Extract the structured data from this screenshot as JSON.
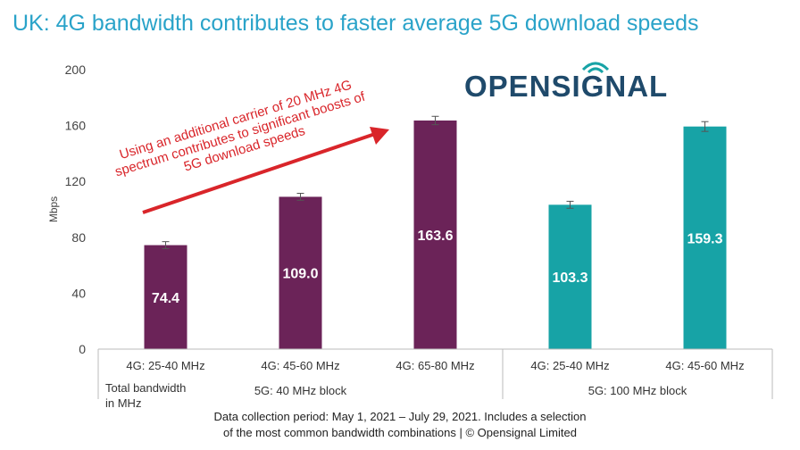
{
  "title": "UK: 4G bandwidth contributes to faster average 5G download speeds",
  "logo_text": "OPENSIGNAL",
  "annotation": "Using an additional carrier of 20 MHz 4G spectrum contributes to significant boosts of 5G download speeds",
  "footnote_line1": "Data collection period: May 1, 2021 – July 29, 2021. Includes a selection",
  "footnote_line2": "of the most common bandwidth combinations | © Opensignal Limited",
  "colors": {
    "title": "#2aa3c9",
    "purple": "#6b2358",
    "teal": "#17a3a6",
    "annotation": "#d9252a",
    "logo": "#1f4a6b"
  },
  "chart_data": {
    "type": "bar",
    "ylabel": "Mbps",
    "ylim": [
      0,
      200
    ],
    "yticks": [
      0,
      40,
      80,
      120,
      160,
      200
    ],
    "categories": [
      "4G: 25-40 MHz",
      "4G: 45-60 MHz",
      "4G: 65-80 MHz",
      "4G: 25-40 MHz",
      "4G: 45-60 MHz"
    ],
    "values": [
      74.4,
      109.0,
      163.6,
      103.3,
      159.3
    ],
    "value_labels": [
      "74.4",
      "109.0",
      "163.6",
      "103.3",
      "159.3"
    ],
    "error_bars": [
      2.5,
      2.5,
      3.0,
      2.5,
      3.5
    ],
    "bar_colors": [
      "#6b2358",
      "#6b2358",
      "#6b2358",
      "#17a3a6",
      "#17a3a6"
    ],
    "groups": [
      {
        "label": "5G: 40 MHz block",
        "bars": [
          0,
          1,
          2
        ]
      },
      {
        "label": "5G: 100 MHz block",
        "bars": [
          3,
          4
        ]
      }
    ],
    "axis_group_caption_line1": "Total bandwidth",
    "axis_group_caption_line2": "in MHz"
  }
}
